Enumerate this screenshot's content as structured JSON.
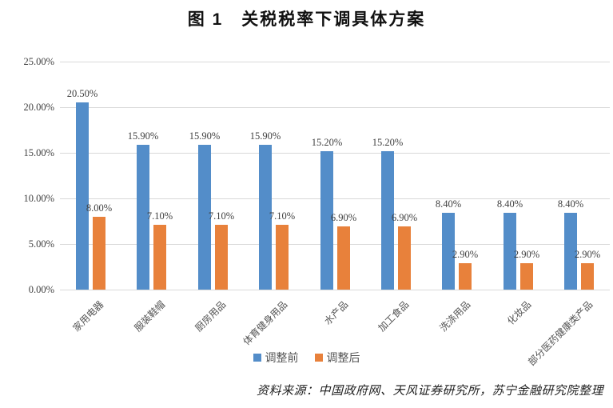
{
  "title": "图 1　关税税率下调具体方案",
  "source": "资料来源：中国政府网、天风证券研究所，苏宁金融研究院整理",
  "colors": {
    "series_before": "#538DC9",
    "series_after": "#E8813B",
    "gridline": "#D9D9D9",
    "axis_text": "#404040"
  },
  "legend": {
    "before_label": "调整前",
    "after_label": "调整后"
  },
  "chart_data": {
    "type": "bar",
    "title": "图 1　关税税率下调具体方案",
    "xlabel": "",
    "ylabel": "",
    "ylim": [
      0,
      25
    ],
    "grid": true,
    "legend_position": "bottom",
    "yticks": [
      {
        "value": 0,
        "label": "0.00%"
      },
      {
        "value": 5,
        "label": "5.00%"
      },
      {
        "value": 10,
        "label": "10.00%"
      },
      {
        "value": 15,
        "label": "15.00%"
      },
      {
        "value": 20,
        "label": "20.00%"
      },
      {
        "value": 25,
        "label": "25.00%"
      }
    ],
    "categories": [
      "家用电器",
      "服装鞋帽",
      "厨房用品",
      "体育健身用品",
      "水产品",
      "加工食品",
      "洗涤用品",
      "化妆品",
      "部分医药健康类产品"
    ],
    "series": [
      {
        "name": "调整前",
        "color": "#538DC9",
        "values": [
          20.5,
          15.9,
          15.9,
          15.9,
          15.2,
          15.2,
          8.4,
          8.4,
          8.4
        ],
        "labels": [
          "20.50%",
          "15.90%",
          "15.90%",
          "15.90%",
          "15.20%",
          "15.20%",
          "8.40%",
          "8.40%",
          "8.40%"
        ]
      },
      {
        "name": "调整后",
        "color": "#E8813B",
        "values": [
          8.0,
          7.1,
          7.1,
          7.1,
          6.9,
          6.9,
          2.9,
          2.9,
          2.9
        ],
        "labels": [
          "8.00%",
          "7.10%",
          "7.10%",
          "7.10%",
          "6.90%",
          "6.90%",
          "2.90%",
          "2.90%",
          "2.90%"
        ]
      }
    ]
  }
}
